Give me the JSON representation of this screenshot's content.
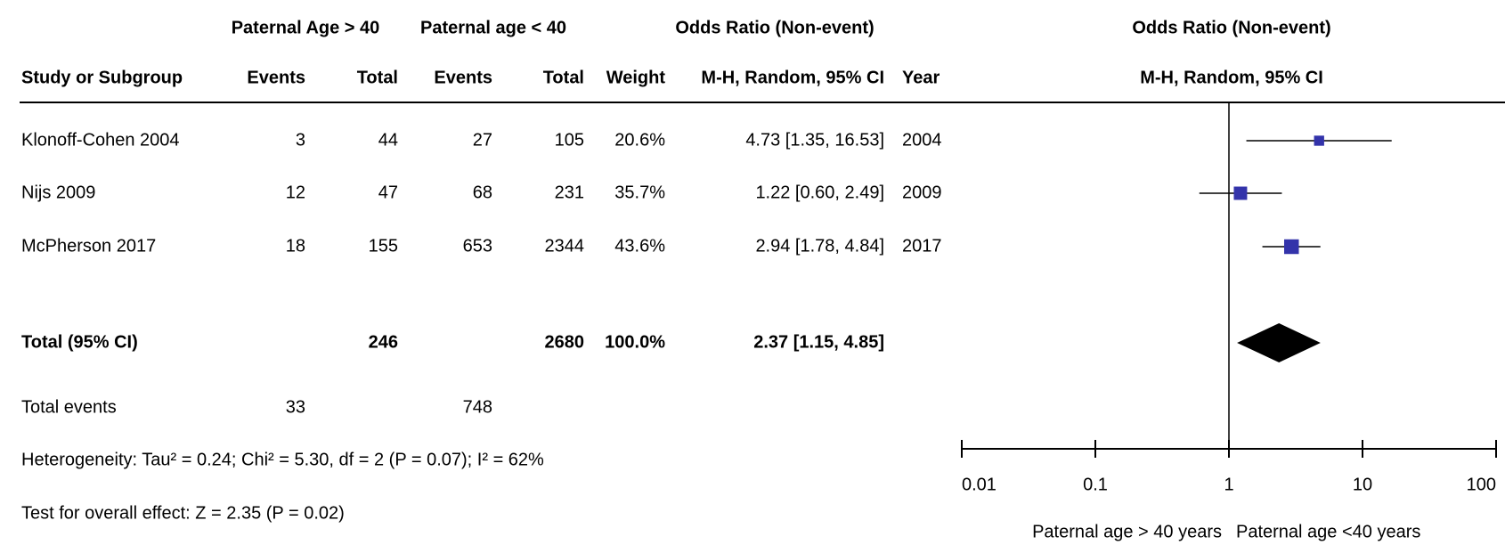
{
  "table": {
    "group_headers": [
      "Paternal Age > 40",
      "Paternal age < 40",
      "Odds Ratio (Non-event)"
    ],
    "columns": [
      "Study or Subgroup",
      "Events",
      "Total",
      "Events",
      "Total",
      "Weight",
      "M-H, Random, 95% CI",
      "Year"
    ],
    "rows": [
      [
        "Klonoff-Cohen 2004",
        "3",
        "44",
        "27",
        "105",
        "20.6%",
        "4.73 [1.35, 16.53]",
        "2004"
      ],
      [
        "Nijs 2009",
        "12",
        "47",
        "68",
        "231",
        "35.7%",
        "1.22 [0.60, 2.49]",
        "2009"
      ],
      [
        "McPherson 2017",
        "18",
        "155",
        "653",
        "2344",
        "43.6%",
        "2.94 [1.78, 4.84]",
        "2017"
      ]
    ],
    "total": {
      "label": "Total (95% CI)",
      "total_exp": "246",
      "total_ctrl": "2680",
      "weight": "100.0%",
      "ci": "2.37 [1.15, 4.85]"
    },
    "total_events": {
      "label": "Total events",
      "exp": "33",
      "ctrl": "748"
    },
    "heterogeneity": "Heterogeneity: Tau² = 0.24; Chi² = 5.30, df = 2 (P = 0.07); I² = 62%",
    "overall_effect": "Test for overall effect: Z = 2.35 (P = 0.02)"
  },
  "chart_data": {
    "type": "forest",
    "title": "Odds Ratio (Non-event)",
    "subtitle": "M-H, Random, 95% CI",
    "xlim": [
      0.01,
      100
    ],
    "xticks": [
      0.01,
      0.1,
      1,
      10,
      100
    ],
    "log_x": true,
    "reference": 1,
    "color": "#3333aa",
    "total_color": "#000000",
    "values": [
      4.73,
      1.22,
      2.94
    ],
    "lower": [
      1.35,
      0.6,
      1.78
    ],
    "upper": [
      16.53,
      2.49,
      4.84
    ],
    "weights": [
      20.6,
      35.7,
      43.6
    ],
    "total": {
      "value": 2.37,
      "lower": 1.15,
      "upper": 4.85
    },
    "favours": [
      "Paternal age > 40 years",
      "Paternal age <40 years"
    ]
  }
}
